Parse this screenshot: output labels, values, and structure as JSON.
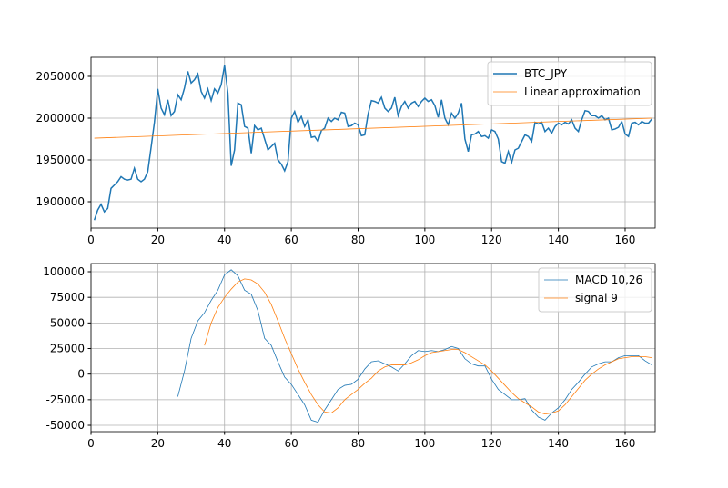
{
  "chart_data": [
    {
      "type": "line",
      "grid": true,
      "legend": "upper right",
      "xlim": [
        0,
        169
      ],
      "ylim": [
        1868500,
        2072800
      ],
      "xticks": [
        0,
        20,
        40,
        60,
        80,
        100,
        120,
        140,
        160
      ],
      "yticks": [
        1900000,
        1950000,
        2000000,
        2050000
      ],
      "series": [
        {
          "name": "BTC_JPY",
          "color": "#1f77b4",
          "x": [
            1,
            2,
            3,
            4,
            5,
            6,
            7,
            8,
            9,
            10,
            11,
            12,
            13,
            14,
            15,
            16,
            17,
            18,
            19,
            20,
            21,
            22,
            23,
            24,
            25,
            26,
            27,
            28,
            29,
            30,
            31,
            32,
            33,
            34,
            35,
            36,
            37,
            38,
            39,
            40,
            41,
            42,
            43,
            44,
            45,
            46,
            47,
            48,
            49,
            50,
            51,
            52,
            53,
            54,
            55,
            56,
            57,
            58,
            59,
            60,
            61,
            62,
            63,
            64,
            65,
            66,
            67,
            68,
            69,
            70,
            71,
            72,
            73,
            74,
            75,
            76,
            77,
            78,
            79,
            80,
            81,
            82,
            83,
            84,
            85,
            86,
            87,
            88,
            89,
            90,
            91,
            92,
            93,
            94,
            95,
            96,
            97,
            98,
            99,
            100,
            101,
            102,
            103,
            104,
            105,
            106,
            107,
            108,
            109,
            110,
            111,
            112,
            113,
            114,
            115,
            116,
            117,
            118,
            119,
            120,
            121,
            122,
            123,
            124,
            125,
            126,
            127,
            128,
            129,
            130,
            131,
            132,
            133,
            134,
            135,
            136,
            137,
            138,
            139,
            140,
            141,
            142,
            143,
            144,
            145,
            146,
            147,
            148,
            149,
            150,
            151,
            152,
            153,
            154,
            155,
            156,
            157,
            158,
            159,
            160,
            161,
            162,
            163,
            164,
            165,
            166,
            167,
            168
          ],
          "values": [
            1878000,
            1890000,
            1897000,
            1888000,
            1892000,
            1916000,
            1920000,
            1924000,
            1930000,
            1927000,
            1926000,
            1927000,
            1940000,
            1927000,
            1924000,
            1927000,
            1936000,
            1965000,
            1995000,
            2035000,
            2012000,
            2004000,
            2022000,
            2003000,
            2008000,
            2028000,
            2022000,
            2036000,
            2056000,
            2042000,
            2046000,
            2053000,
            2032000,
            2024000,
            2035000,
            2021000,
            2035000,
            2030000,
            2040000,
            2063000,
            2030000,
            1943000,
            1962000,
            2018000,
            2016000,
            1990000,
            1988000,
            1958000,
            1991000,
            1986000,
            1988000,
            1975000,
            1962000,
            1966000,
            1970000,
            1950000,
            1945000,
            1937000,
            1948000,
            2000000,
            2008000,
            1995000,
            2002000,
            1990000,
            1998000,
            1977000,
            1978000,
            1972000,
            1985000,
            1988000,
            2000000,
            1996000,
            2000000,
            1998000,
            2007000,
            2006000,
            1990000,
            1991000,
            1994000,
            1992000,
            1979000,
            1980000,
            2005000,
            2021000,
            2020000,
            2018000,
            2025000,
            2012000,
            2008000,
            2012000,
            2025000,
            2003000,
            2014000,
            2020000,
            2012000,
            2018000,
            2020000,
            2014000,
            2020000,
            2024000,
            2020000,
            2022000,
            2015000,
            2001000,
            2022000,
            2000000,
            1992000,
            2006000,
            2000000,
            2006000,
            2018000,
            1975000,
            1960000,
            1980000,
            1981000,
            1984000,
            1978000,
            1979000,
            1976000,
            1986000,
            1984000,
            1975000,
            1948000,
            1946000,
            1960000,
            1947000,
            1962000,
            1964000,
            1972000,
            1980000,
            1978000,
            1972000,
            1995000,
            1993000,
            1995000,
            1984000,
            1988000,
            1982000,
            1990000,
            1994000,
            1992000,
            1995000,
            1993000,
            1998000,
            1988000,
            1984000,
            1998000,
            2009000,
            2008000,
            2003000,
            2003000,
            2000000,
            2003000,
            1998000,
            2000000,
            1986000,
            1987000,
            1989000,
            1996000,
            1981000,
            1978000,
            1994000,
            1995000,
            1992000,
            1996000,
            1994000,
            1994000,
            1999000
          ]
        },
        {
          "name": "Linear approximation",
          "color": "#ff7f0e",
          "x": [
            1,
            168
          ],
          "values": [
            1976000,
            2000000
          ]
        }
      ]
    },
    {
      "type": "line",
      "grid": true,
      "legend": "upper right",
      "xlim": [
        0,
        169
      ],
      "ylim": [
        -56200,
        108000
      ],
      "xticks": [
        0,
        20,
        40,
        60,
        80,
        100,
        120,
        140,
        160
      ],
      "yticks": [
        -50000,
        -25000,
        0,
        25000,
        50000,
        75000,
        100000
      ],
      "series": [
        {
          "name": "MACD 10,26",
          "color": "#1f77b4",
          "x": [
            26,
            28,
            30,
            32,
            34,
            36,
            38,
            40,
            42,
            44,
            46,
            48,
            50,
            52,
            54,
            56,
            58,
            60,
            62,
            64,
            66,
            68,
            70,
            72,
            74,
            76,
            78,
            80,
            82,
            84,
            86,
            88,
            90,
            92,
            94,
            96,
            98,
            100,
            102,
            104,
            106,
            108,
            110,
            112,
            114,
            116,
            118,
            120,
            122,
            124,
            126,
            128,
            130,
            132,
            134,
            136,
            138,
            140,
            142,
            144,
            146,
            148,
            150,
            152,
            154,
            156,
            158,
            160,
            162,
            164,
            166,
            168
          ],
          "values": [
            -22000,
            3000,
            35000,
            52000,
            60000,
            72000,
            82000,
            97000,
            102000,
            96000,
            82000,
            78000,
            62000,
            35000,
            28000,
            12000,
            -3000,
            -10000,
            -20000,
            -30000,
            -45000,
            -47000,
            -35000,
            -25000,
            -15000,
            -11000,
            -10000,
            -5000,
            5000,
            12000,
            13000,
            10000,
            7000,
            3000,
            10000,
            18000,
            23000,
            22000,
            23000,
            22000,
            24000,
            27000,
            25000,
            15000,
            10000,
            8000,
            8000,
            -5000,
            -15000,
            -20000,
            -25000,
            -25000,
            -24000,
            -35000,
            -42000,
            -45000,
            -38000,
            -33000,
            -25000,
            -15000,
            -8000,
            0,
            7000,
            10000,
            12000,
            12000,
            16000,
            18000,
            18000,
            18000,
            13000,
            9000
          ]
        },
        {
          "name": "signal 9",
          "color": "#ff7f0e",
          "x": [
            34,
            36,
            38,
            40,
            42,
            44,
            46,
            48,
            50,
            52,
            54,
            56,
            58,
            60,
            62,
            64,
            66,
            68,
            70,
            72,
            74,
            76,
            78,
            80,
            82,
            84,
            86,
            88,
            90,
            92,
            94,
            96,
            98,
            100,
            102,
            104,
            106,
            108,
            110,
            112,
            114,
            116,
            118,
            120,
            122,
            124,
            126,
            128,
            130,
            132,
            134,
            136,
            138,
            140,
            142,
            144,
            146,
            148,
            150,
            152,
            154,
            156,
            158,
            160,
            162,
            164,
            166,
            168
          ],
          "values": [
            28000,
            50000,
            65000,
            75000,
            83000,
            90000,
            93000,
            92000,
            88000,
            80000,
            68000,
            52000,
            35000,
            20000,
            5000,
            -8000,
            -20000,
            -30000,
            -37000,
            -38000,
            -33000,
            -25000,
            -20000,
            -15000,
            -9000,
            -4000,
            3000,
            7000,
            9000,
            9000,
            9000,
            11000,
            14000,
            18000,
            21000,
            22000,
            23000,
            24000,
            24000,
            21000,
            17000,
            13000,
            9000,
            3000,
            -4000,
            -11000,
            -18000,
            -24000,
            -28000,
            -32000,
            -37000,
            -39000,
            -38000,
            -36000,
            -30000,
            -22000,
            -14000,
            -6000,
            0,
            5000,
            9000,
            12000,
            15000,
            16000,
            17000,
            17000,
            17000,
            16000
          ]
        }
      ]
    }
  ]
}
